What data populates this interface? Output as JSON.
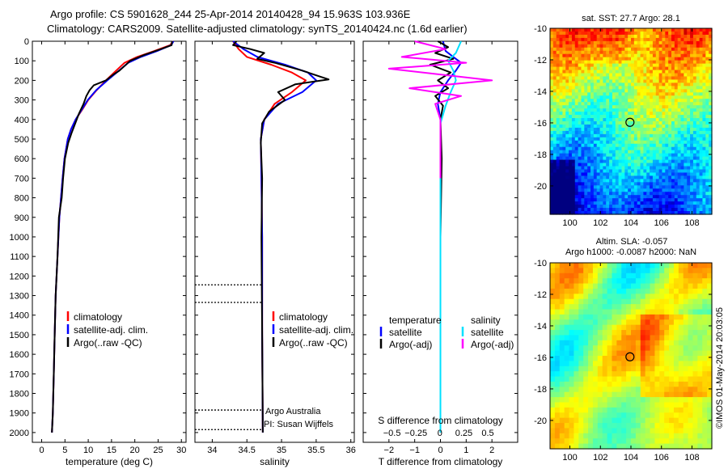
{
  "title_line1": "Argo profile: CS 5901628_244 25-Apr-2014 20140428_94 15.963S 103.936E",
  "title_line2": "Climatology: CARS2009. Satellite-adjusted climatology: synTS_20140424.nc (1.6d earlier)",
  "side_stamp": "©IMOS 01-May-2014 20:03:05",
  "colors": {
    "climatology": "#ff0000",
    "satellite": "#0000ff",
    "argo": "#000000",
    "satellite_salinity": "#00e0ff",
    "argo_salinity_adj": "#ff00ff"
  },
  "chart_data": [
    {
      "type": "line",
      "id": "temperature",
      "xlabel": "temperature (deg C)",
      "ylabel": "",
      "xlim": [
        -2,
        31
      ],
      "ylim": [
        2050,
        0
      ],
      "xticks": [
        0,
        5,
        10,
        15,
        20,
        25,
        30
      ],
      "xtick_labels": [
        "0",
        "5",
        "10",
        "15",
        "20",
        "25",
        "30"
      ],
      "yticks": [
        0,
        100,
        200,
        300,
        400,
        500,
        600,
        700,
        800,
        900,
        1000,
        1100,
        1200,
        1300,
        1400,
        1500,
        1600,
        1700,
        1800,
        1900,
        2000
      ],
      "legend": [
        "climatology",
        "satellite-adj. clim.",
        "Argo(..raw -QC)"
      ],
      "series": [
        {
          "name": "climatology",
          "color": "#ff0000",
          "x": [
            28.2,
            27.6,
            24.2,
            20.5,
            17.8,
            16.0,
            13.8,
            11.8,
            10.0,
            8.7,
            7.3,
            6.3,
            5.6,
            4.9,
            4.5,
            3.8,
            3.4,
            3.0,
            2.8,
            2.6,
            2.4,
            2.2
          ],
          "y": [
            0,
            20,
            50,
            80,
            110,
            150,
            200,
            250,
            300,
            350,
            400,
            450,
            500,
            600,
            700,
            900,
            1100,
            1300,
            1500,
            1700,
            1900,
            2000
          ]
        },
        {
          "name": "satellite-adj. clim.",
          "color": "#0000ff",
          "x": [
            28.3,
            27.8,
            24.8,
            21.3,
            18.6,
            16.6,
            14.1,
            11.7,
            9.9,
            8.6,
            7.3,
            6.3,
            5.6,
            4.9,
            4.5,
            3.8,
            3.4,
            3.0,
            2.8,
            2.6,
            2.4,
            2.2
          ],
          "y": [
            0,
            20,
            50,
            80,
            110,
            150,
            200,
            250,
            300,
            350,
            400,
            450,
            500,
            600,
            700,
            900,
            1100,
            1300,
            1500,
            1700,
            1900,
            2000
          ]
        },
        {
          "name": "Argo(..raw -QC)",
          "color": "#000000",
          "x": [
            28.0,
            27.9,
            25.6,
            22.0,
            19.0,
            16.7,
            15.4,
            13.8,
            11.2,
            10.3,
            9.6,
            9.0,
            8.0,
            7.2,
            6.4,
            5.7,
            5.0,
            4.6,
            4.3,
            3.7,
            3.4,
            3.0,
            2.8,
            2.6,
            2.4,
            2.2
          ],
          "y": [
            0,
            20,
            40,
            70,
            100,
            150,
            170,
            200,
            225,
            250,
            280,
            320,
            370,
            420,
            470,
            520,
            600,
            700,
            800,
            900,
            1100,
            1300,
            1500,
            1700,
            1900,
            2000
          ]
        }
      ]
    },
    {
      "type": "line",
      "id": "salinity",
      "xlabel": "salinity",
      "xlim": [
        33.75,
        36.05
      ],
      "ylim": [
        2050,
        0
      ],
      "xticks": [
        34,
        34.5,
        35,
        35.5,
        36
      ],
      "xtick_labels": [
        "34",
        "34.5",
        "35",
        "35.5",
        "36"
      ],
      "legend": [
        "climatology",
        "satellite-adj. clim.",
        "Argo(..raw -QC)"
      ],
      "annotations": [
        "Argo Australia",
        "PI: Susan Wijffels"
      ],
      "dotted_levels": [
        1245,
        1335,
        1885,
        1985
      ],
      "series": [
        {
          "name": "climatology",
          "color": "#ff0000",
          "x": [
            34.3,
            34.38,
            34.5,
            34.85,
            35.15,
            35.35,
            35.15,
            34.9,
            34.75,
            34.7,
            34.71,
            34.72,
            34.72,
            34.73
          ],
          "y": [
            0,
            40,
            80,
            120,
            160,
            200,
            260,
            320,
            400,
            500,
            700,
            1000,
            1500,
            2000
          ]
        },
        {
          "name": "satellite-adj. clim.",
          "color": "#0000ff",
          "x": [
            34.3,
            34.45,
            34.65,
            35.05,
            35.38,
            35.5,
            35.3,
            34.95,
            34.75,
            34.7,
            34.71,
            34.72,
            34.72,
            34.73
          ],
          "y": [
            0,
            40,
            80,
            120,
            160,
            200,
            260,
            320,
            400,
            500,
            700,
            1000,
            1500,
            2000
          ]
        },
        {
          "name": "Argo(..raw -QC)",
          "color": "#000000",
          "x": [
            34.35,
            34.3,
            34.55,
            34.75,
            34.65,
            34.9,
            35.3,
            35.55,
            35.68,
            35.2,
            34.95,
            35.05,
            34.82,
            34.72,
            34.7,
            34.72,
            34.71,
            34.72,
            34.73
          ],
          "y": [
            0,
            20,
            40,
            60,
            90,
            110,
            150,
            180,
            195,
            220,
            260,
            300,
            360,
            420,
            520,
            700,
            1000,
            1500,
            2000
          ]
        }
      ]
    },
    {
      "type": "line",
      "id": "differences",
      "xlabel": "T difference from climatology",
      "x2label": "S difference from climatology",
      "xlim": [
        -3,
        3
      ],
      "ylim": [
        2050,
        0
      ],
      "xticks": [
        -2,
        -1,
        0,
        1,
        2
      ],
      "xtick_labels": [
        "−2",
        "−1",
        "0",
        "1",
        "2"
      ],
      "x2ticks": [
        -0.5,
        -0.25,
        0,
        0.25,
        0.5
      ],
      "x2tick_labels": [
        "−0.5",
        "−0.25",
        "0",
        "0.25",
        "0.5"
      ],
      "legend_headers": [
        "temperature",
        "salinity"
      ],
      "legend": [
        "satellite",
        "Argo(-adj)",
        "satellite",
        "Argo(-adj)"
      ],
      "series": [
        {
          "name": "temperature satellite",
          "color": "#0000ff",
          "x": [
            0.1,
            0.2,
            0.5,
            0.8,
            0.6,
            0.3,
            0.0,
            -0.1,
            0.0,
            0.0,
            0.0,
            0.0,
            0.0
          ],
          "y": [
            0,
            50,
            80,
            110,
            150,
            200,
            260,
            320,
            400,
            600,
            1000,
            1500,
            2000
          ]
        },
        {
          "name": "temperature Argo(-adj)",
          "color": "#000000",
          "x": [
            -0.1,
            0.3,
            -0.2,
            0.5,
            -0.4,
            0.4,
            -0.1,
            0.3,
            -0.2,
            0.1,
            0.0,
            0.05,
            0.0,
            0.0
          ],
          "y": [
            0,
            30,
            60,
            90,
            120,
            160,
            200,
            240,
            280,
            330,
            400,
            600,
            1000,
            2000
          ]
        },
        {
          "name": "salinity satellite",
          "color": "#00e0ff",
          "x": [
            0.8,
            0.6,
            0.3,
            0.5,
            0.6,
            0.4,
            0.2,
            0.0,
            0.0,
            0.0
          ],
          "y": [
            0,
            60,
            100,
            150,
            200,
            260,
            330,
            420,
            700,
            2000
          ]
        },
        {
          "name": "salinity Argo(-adj)",
          "color": "#ff00ff",
          "x": [
            -1.0,
            0.2,
            -1.5,
            1.0,
            -2.0,
            2.0,
            -1.2,
            0.8,
            -0.2,
            0.0,
            0.0
          ],
          "y": [
            0,
            40,
            80,
            110,
            140,
            200,
            240,
            280,
            320,
            400,
            700
          ]
        }
      ]
    },
    {
      "type": "heatmap",
      "id": "sst_map",
      "title": "sat. SST: 27.7 Argo: 28.1",
      "xlim": [
        98.7,
        109.3
      ],
      "ylim": [
        -21.8,
        -10
      ],
      "xticks": [
        100,
        102,
        104,
        106,
        108
      ],
      "yticks": [
        -10,
        -12,
        -14,
        -16,
        -18,
        -20
      ],
      "xtick_labels": [
        "100",
        "102",
        "104",
        "106",
        "108"
      ],
      "ytick_labels": [
        "-10",
        "-12",
        "-14",
        "-16",
        "-18",
        "-20"
      ],
      "marker": {
        "lon": 103.936,
        "lat": -15.963
      }
    },
    {
      "type": "heatmap",
      "id": "sla_map",
      "title_line1": "Altim. SLA: -0.057",
      "title_line2": "Argo h1000: -0.0087 h2000: NaN",
      "xlim": [
        98.7,
        109.3
      ],
      "ylim": [
        -21.8,
        -10
      ],
      "xticks": [
        100,
        102,
        104,
        106,
        108
      ],
      "yticks": [
        -10,
        -12,
        -14,
        -16,
        -18,
        -20
      ],
      "xtick_labels": [
        "100",
        "102",
        "104",
        "106",
        "108"
      ],
      "ytick_labels": [
        "-10",
        "-12",
        "-14",
        "-16",
        "-18",
        "-20"
      ],
      "marker": {
        "lon": 103.936,
        "lat": -15.963
      }
    }
  ]
}
